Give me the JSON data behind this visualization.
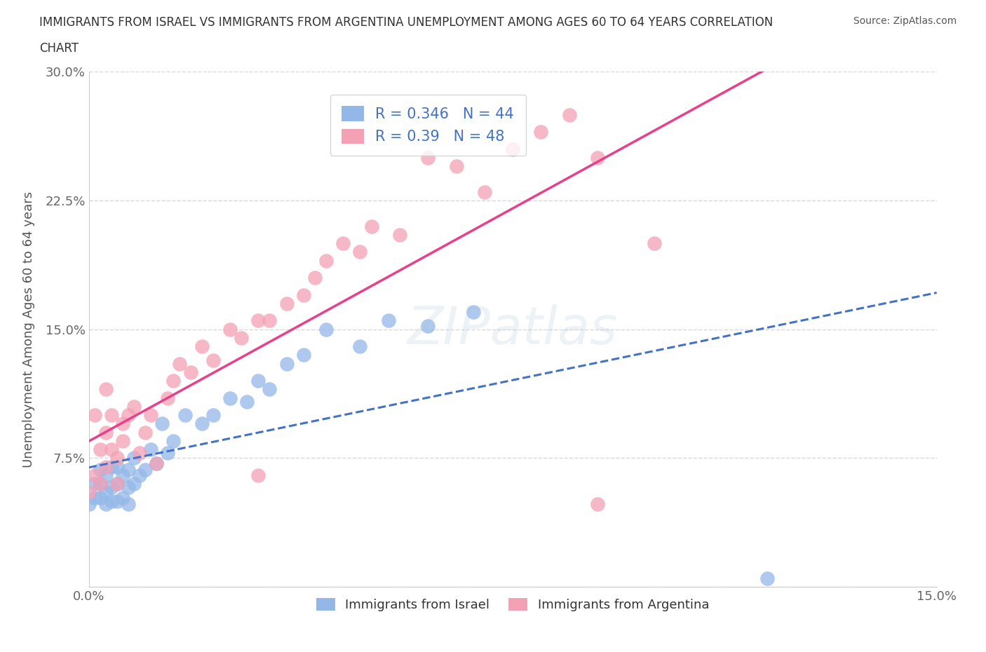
{
  "title_line1": "IMMIGRANTS FROM ISRAEL VS IMMIGRANTS FROM ARGENTINA UNEMPLOYMENT AMONG AGES 60 TO 64 YEARS CORRELATION",
  "title_line2": "CHART",
  "source": "Source: ZipAtlas.com",
  "ylabel": "Unemployment Among Ages 60 to 64 years",
  "legend_bottom": [
    "Immigrants from Israel",
    "Immigrants from Argentina"
  ],
  "R_israel": 0.346,
  "N_israel": 44,
  "R_argentina": 0.39,
  "N_argentina": 48,
  "xlim": [
    0.0,
    0.15
  ],
  "ylim": [
    0.0,
    0.3
  ],
  "color_israel": "#93b8e8",
  "color_argentina": "#f4a0b5",
  "trendline_israel": "#4472c4",
  "trendline_argentina": "#e8408a",
  "israel_x": [
    0.0,
    0.001,
    0.001,
    0.002,
    0.002,
    0.002,
    0.003,
    0.003,
    0.003,
    0.004,
    0.004,
    0.004,
    0.005,
    0.005,
    0.005,
    0.006,
    0.006,
    0.007,
    0.007,
    0.007,
    0.008,
    0.008,
    0.009,
    0.01,
    0.011,
    0.012,
    0.013,
    0.014,
    0.015,
    0.017,
    0.02,
    0.022,
    0.025,
    0.028,
    0.03,
    0.032,
    0.035,
    0.038,
    0.042,
    0.048,
    0.053,
    0.06,
    0.068,
    0.12
  ],
  "israel_y": [
    0.048,
    0.052,
    0.06,
    0.052,
    0.06,
    0.068,
    0.048,
    0.055,
    0.065,
    0.05,
    0.058,
    0.07,
    0.05,
    0.06,
    0.07,
    0.052,
    0.065,
    0.048,
    0.058,
    0.068,
    0.06,
    0.075,
    0.065,
    0.068,
    0.08,
    0.072,
    0.095,
    0.078,
    0.085,
    0.1,
    0.095,
    0.1,
    0.11,
    0.108,
    0.12,
    0.115,
    0.13,
    0.135,
    0.15,
    0.14,
    0.155,
    0.152,
    0.16,
    0.005
  ],
  "argentina_x": [
    0.0,
    0.001,
    0.001,
    0.002,
    0.002,
    0.003,
    0.003,
    0.003,
    0.004,
    0.004,
    0.005,
    0.005,
    0.006,
    0.006,
    0.007,
    0.008,
    0.009,
    0.01,
    0.011,
    0.012,
    0.014,
    0.015,
    0.016,
    0.018,
    0.02,
    0.022,
    0.025,
    0.027,
    0.03,
    0.03,
    0.032,
    0.035,
    0.038,
    0.04,
    0.042,
    0.045,
    0.048,
    0.05,
    0.055,
    0.06,
    0.065,
    0.07,
    0.075,
    0.08,
    0.085,
    0.09,
    0.1,
    0.09
  ],
  "argentina_y": [
    0.055,
    0.065,
    0.1,
    0.06,
    0.08,
    0.07,
    0.09,
    0.115,
    0.08,
    0.1,
    0.06,
    0.075,
    0.085,
    0.095,
    0.1,
    0.105,
    0.078,
    0.09,
    0.1,
    0.072,
    0.11,
    0.12,
    0.13,
    0.125,
    0.14,
    0.132,
    0.15,
    0.145,
    0.155,
    0.065,
    0.155,
    0.165,
    0.17,
    0.18,
    0.19,
    0.2,
    0.195,
    0.21,
    0.205,
    0.25,
    0.245,
    0.23,
    0.255,
    0.265,
    0.275,
    0.25,
    0.2,
    0.048
  ],
  "watermark": "ZIPatlas",
  "background_color": "#ffffff",
  "grid_color": "#d8d8d8"
}
